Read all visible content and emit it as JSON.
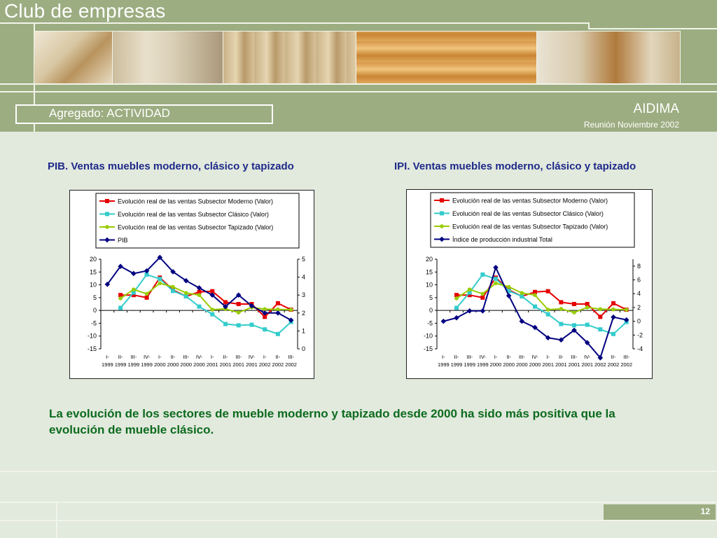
{
  "header": {
    "title": "Club de empresas",
    "section": "Agregado: ACTIVIDAD",
    "organization": "AIDIMA",
    "meeting": "Reunión Noviembre 2002"
  },
  "conclusion": "La evolución de los sectores de mueble moderno y tapizado desde 2000 ha sido más positiva que la evolución de mueble clásico.",
  "page_number": "12",
  "photos": [
    "photo-lounge-chair",
    "photo-bookshelves",
    "photo-wood-boards",
    "photo-carpentry-workshop",
    "photo-cabinet-interior"
  ],
  "colors": {
    "moderno": "#e60000",
    "clasico": "#33cccc",
    "tapizado": "#99cc00",
    "indicador": "#000080",
    "accent": "#9cad81",
    "conclusion_text": "#0c6b1e",
    "chart_title": "#1e2a8a"
  },
  "chart_data": [
    {
      "type": "line",
      "title": "PIB. Ventas muebles moderno, clásico y tapizado",
      "categories": [
        "I-1999",
        "II-1999",
        "III-1999",
        "IV-1999",
        "I-2000",
        "II-2000",
        "III-2000",
        "IV-2000",
        "I-2001",
        "II-2001",
        "III-2001",
        "IV-2001",
        "I-2002",
        "II-2002",
        "III-2002"
      ],
      "tick_labels": [
        [
          "I-",
          "1999"
        ],
        [
          "II-",
          "1999"
        ],
        [
          "III-",
          "1999"
        ],
        [
          "IV-",
          "1999"
        ],
        [
          "I-",
          "2000"
        ],
        [
          "II-",
          "2000"
        ],
        [
          "III-",
          "2000"
        ],
        [
          "IV-",
          "2000"
        ],
        [
          "I-",
          "2001"
        ],
        [
          "II-",
          "2001"
        ],
        [
          "III-",
          "2001"
        ],
        [
          "IV-",
          "2001"
        ],
        [
          "I-",
          "2002"
        ],
        [
          "II-",
          "2002"
        ],
        [
          "III-",
          "2002"
        ]
      ],
      "ylim": [
        -15,
        20
      ],
      "y_ticks": [
        "20",
        "15",
        "10",
        "5",
        "0",
        "-5",
        "-10",
        "-15"
      ],
      "y2lim": [
        0,
        5
      ],
      "y2_ticks": [
        "5",
        "4",
        "3",
        "2",
        "1",
        "0"
      ],
      "series": [
        {
          "name": "Evolución real de las ventas Subsector Moderno (Valor)",
          "axis": "left",
          "color": "#e60000",
          "marker": "square",
          "values": [
            null,
            6,
            6,
            5,
            12.8,
            8,
            5.5,
            7.2,
            7.5,
            3.2,
            2.5,
            2.5,
            -2.5,
            2.8,
            0.3
          ]
        },
        {
          "name": "Evolución real de las ventas Subsector Clásico (Valor)",
          "axis": "left",
          "color": "#33cccc",
          "marker": "square",
          "values": [
            null,
            1,
            7,
            14,
            12.3,
            7.6,
            5.5,
            1.5,
            -1.5,
            -5.3,
            -5.8,
            -5.6,
            -7.4,
            -9.2,
            -4.5
          ]
        },
        {
          "name": "Evolución real de las ventas Subsector Tapizado (Valor)",
          "axis": "left",
          "color": "#99cc00",
          "marker": "circle",
          "values": [
            null,
            4.7,
            8.2,
            6.5,
            10.6,
            9.2,
            6.8,
            6.0,
            0.3,
            0.6,
            -0.8,
            1.2,
            0.5,
            0.4,
            0.3
          ]
        },
        {
          "name": "PIB",
          "axis": "right",
          "color": "#000080",
          "marker": "diamond",
          "values": [
            3.6,
            4.6,
            4.2,
            4.35,
            5.1,
            4.3,
            3.8,
            3.4,
            3.0,
            2.35,
            3.0,
            2.4,
            2.0,
            2.0,
            1.6
          ]
        }
      ]
    },
    {
      "type": "line",
      "title": "IPI. Ventas muebles moderno, clásico y tapizado",
      "categories": [
        "I-1999",
        "II-1999",
        "III-1999",
        "IV-1999",
        "I-2000",
        "II-2000",
        "III-2000",
        "IV-2000",
        "I-2001",
        "II-2001",
        "III-2001",
        "IV-2001",
        "I-2002",
        "II-2002",
        "III-2002"
      ],
      "tick_labels": [
        [
          "I-",
          "1999"
        ],
        [
          "II-",
          "1999"
        ],
        [
          "III-",
          "1999"
        ],
        [
          "IV-",
          "1999"
        ],
        [
          "I-",
          "2000"
        ],
        [
          "II-",
          "2000"
        ],
        [
          "III-",
          "2000"
        ],
        [
          "IV-",
          "2000"
        ],
        [
          "I-",
          "2001"
        ],
        [
          "II-",
          "2001"
        ],
        [
          "III-",
          "2001"
        ],
        [
          "IV-",
          "2001"
        ],
        [
          "I-",
          "2002"
        ],
        [
          "II-",
          "2002"
        ],
        [
          "III-",
          "2002"
        ]
      ],
      "ylim": [
        -15,
        20
      ],
      "y_ticks": [
        "20",
        "15",
        "10",
        "5",
        "0",
        "-5",
        "-10",
        "-15"
      ],
      "y2lim": [
        -4,
        9
      ],
      "y2_ticks": [
        "8",
        "6",
        "4",
        "2",
        "0",
        "-2",
        "-4"
      ],
      "series": [
        {
          "name": "Evolución real de las ventas Subsector Moderno (Valor)",
          "axis": "left",
          "color": "#e60000",
          "marker": "square",
          "values": [
            null,
            6,
            6,
            5,
            12.8,
            8,
            5.5,
            7.2,
            7.5,
            3.2,
            2.5,
            2.5,
            -2.5,
            2.8,
            0.3
          ]
        },
        {
          "name": "Evolución real de las ventas Subsector Clásico (Valor)",
          "axis": "left",
          "color": "#33cccc",
          "marker": "square",
          "values": [
            null,
            1,
            7,
            14,
            12.3,
            7.6,
            5.5,
            1.5,
            -1.5,
            -5.3,
            -5.8,
            -5.6,
            -7.4,
            -9.2,
            -4.5
          ]
        },
        {
          "name": "Evolución real de las ventas Subsector Tapizado (Valor)",
          "axis": "left",
          "color": "#99cc00",
          "marker": "circle",
          "values": [
            null,
            4.7,
            8.2,
            6.5,
            10.6,
            9.2,
            6.8,
            6.0,
            0.3,
            0.6,
            -0.8,
            1.2,
            0.5,
            0.4,
            0.3
          ]
        },
        {
          "name": "Índice de producción industrial Total",
          "axis": "right",
          "color": "#000080",
          "marker": "diamond",
          "values": [
            0,
            0.5,
            1.5,
            1.5,
            7.8,
            3.7,
            0,
            -0.9,
            -2.4,
            -2.7,
            -1.3,
            -3.1,
            -5.3,
            0.6,
            0.2
          ]
        }
      ]
    }
  ]
}
